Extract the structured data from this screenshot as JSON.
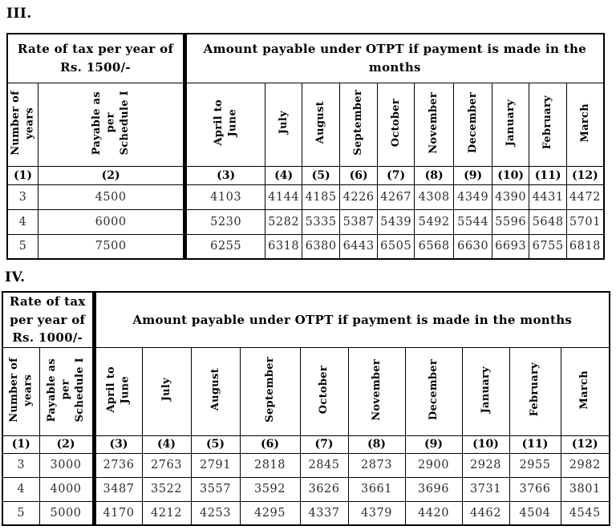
{
  "colors": {
    "background": "#ffffff",
    "border": "#000000",
    "header_text": "#000000",
    "data_text": "#2e2e2e"
  },
  "tables": [
    {
      "label": "III.",
      "rate_header": "Rate of tax per year of\nRs. 1500/-",
      "amount_header": "Amount payable under OTPT if payment is made in the months",
      "col_headers": [
        "Number of\nyears",
        "Payable as\nper\nSchedule I",
        "April to\nJune",
        "July",
        "August",
        "September",
        "October",
        "November",
        "December",
        "January",
        "February",
        "March"
      ],
      "col_numbers": [
        "(1)",
        "(2)",
        "(3)",
        "(4)",
        "(5)",
        "(6)",
        "(7)",
        "(8)",
        "(9)",
        "(10)",
        "(11)",
        "(12)"
      ],
      "rows": [
        [
          "3",
          "4500",
          "4103",
          "4144",
          "4185",
          "4226",
          "4267",
          "4308",
          "4349",
          "4390",
          "4431",
          "4472"
        ],
        [
          "4",
          "6000",
          "5230",
          "5282",
          "5335",
          "5387",
          "5439",
          "5492",
          "5544",
          "5596",
          "5648",
          "5701"
        ],
        [
          "5",
          "7500",
          "6255",
          "6318",
          "6380",
          "6443",
          "6505",
          "6568",
          "6630",
          "6693",
          "6755",
          "6818"
        ]
      ]
    },
    {
      "label": "IV.",
      "rate_header": "Rate of tax\nper year of\nRs. 1000/-",
      "amount_header": "Amount payable under OTPT if payment is made in the months",
      "col_headers": [
        "Number of\nyears",
        "Payable as\nper\nSchedule I",
        "April to\nJune",
        "July",
        "August",
        "September",
        "October",
        "November",
        "December",
        "January",
        "February",
        "March"
      ],
      "col_numbers": [
        "(1)",
        "(2)",
        "(3)",
        "(4)",
        "(5)",
        "(6)",
        "(7)",
        "(8)",
        "(9)",
        "(10)",
        "(11)",
        "(12)"
      ],
      "rows": [
        [
          "3",
          "3000",
          "2736",
          "2763",
          "2791",
          "2818",
          "2845",
          "2873",
          "2900",
          "2928",
          "2955",
          "2982"
        ],
        [
          "4",
          "4000",
          "3487",
          "3522",
          "3557",
          "3592",
          "3626",
          "3661",
          "3696",
          "3731",
          "3766",
          "3801"
        ],
        [
          "5",
          "5000",
          "4170",
          "4212",
          "4253",
          "4295",
          "4337",
          "4379",
          "4420",
          "4462",
          "4504",
          "4545"
        ]
      ]
    }
  ]
}
